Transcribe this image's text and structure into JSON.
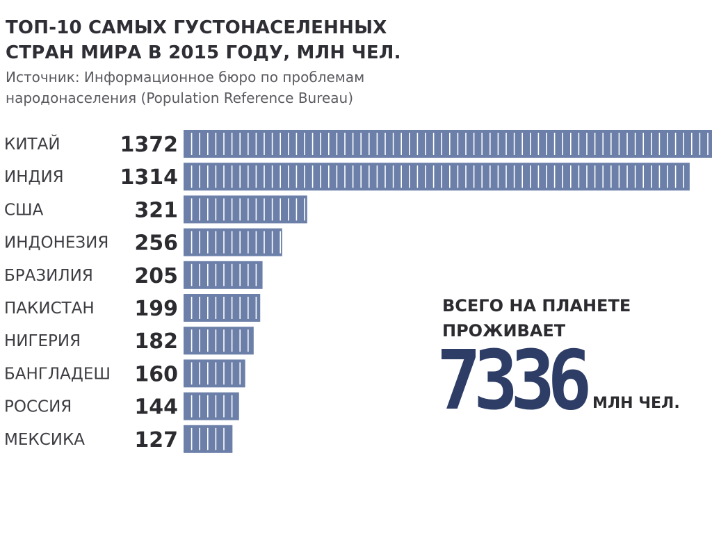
{
  "chart_data": {
    "type": "bar",
    "orientation": "horizontal",
    "title": "ТОП-10 САМЫХ ГУСТОНАСЕЛЕННЫХ СТРАН МИРА В 2015 ГОДУ, МЛН ЧЕЛ.",
    "subtitle": "Источник: Информационное бюро по проблемам народонаселения (Population Reference Bureau)",
    "categories": [
      "КИТАЙ",
      "ИНДИЯ",
      "США",
      "ИНДОНЕЗИЯ",
      "БРАЗИЛИЯ",
      "ПАКИСТАН",
      "НИГЕРИЯ",
      "БАНГЛАДЕШ",
      "РОССИЯ",
      "МЕКСИКА"
    ],
    "values": [
      1372,
      1314,
      321,
      256,
      205,
      199,
      182,
      160,
      144,
      127
    ],
    "xlim": [
      0,
      1372
    ],
    "grid": false,
    "bar_color": "#6b7fa8"
  },
  "summary": {
    "heading_line1": "ВСЕГО НА ПЛАНЕТЕ",
    "heading_line2": "ПРОЖИВАЕТ",
    "total": "7336",
    "unit": "МЛН ЧЕЛ.",
    "total_color": "#2e3d66"
  }
}
